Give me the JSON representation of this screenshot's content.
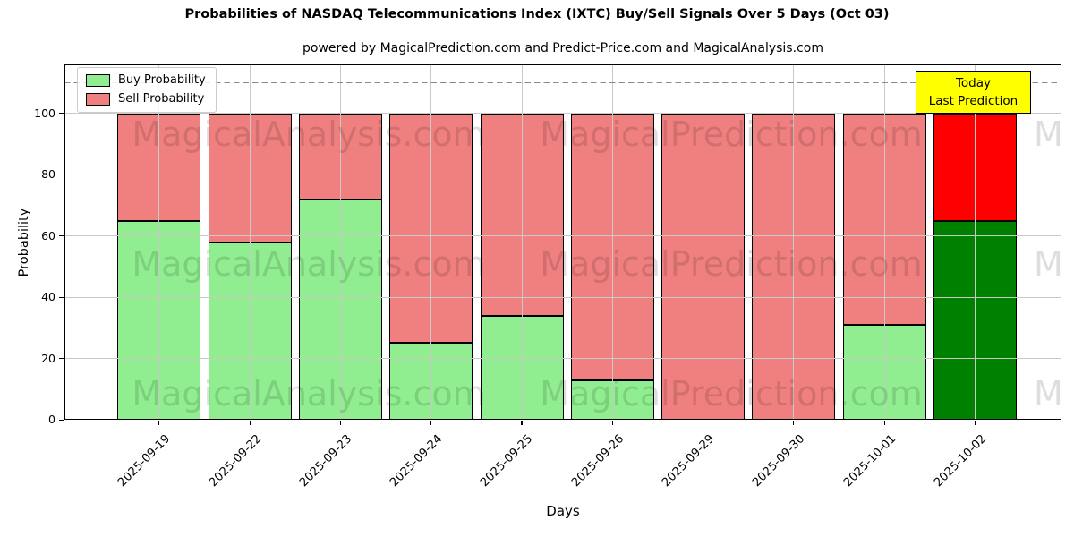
{
  "title": "Probabilities of NASDAQ Telecommunications Index (IXTC) Buy/Sell Signals Over 5 Days (Oct 03)",
  "subtitle": "powered by MagicalPrediction.com and Predict-Price.com and MagicalAnalysis.com",
  "legend": {
    "items": [
      {
        "label": "Buy Probability",
        "color": "#90ee90"
      },
      {
        "label": "Sell Probability",
        "color": "#f08080"
      }
    ]
  },
  "annotation": {
    "line1": "Today",
    "line2": "Last Prediction",
    "bg_color": "#ffff00",
    "border_color": "#000000"
  },
  "watermarks": {
    "texts": [
      "MagicalAnalysis.com",
      "MagicalPrediction.com"
    ],
    "color": "rgba(0,0,0,0.13)"
  },
  "chart_data": {
    "type": "bar",
    "stacked": true,
    "title": "Probabilities of NASDAQ Telecommunications Index (IXTC) Buy/Sell Signals Over 5 Days (Oct 03)",
    "xlabel": "Days",
    "ylabel": "Probability",
    "categories": [
      "2025-09-19",
      "2025-09-22",
      "2025-09-23",
      "2025-09-24",
      "2025-09-25",
      "2025-09-26",
      "2025-09-29",
      "2025-09-30",
      "2025-10-01",
      "2025-10-02"
    ],
    "series": [
      {
        "name": "Buy Probability",
        "color": "#90ee90",
        "values": [
          65,
          58,
          72,
          25,
          34,
          13,
          0,
          0,
          31,
          65
        ]
      },
      {
        "name": "Sell Probability",
        "color": "#f08080",
        "values": [
          35,
          42,
          28,
          75,
          66,
          87,
          100,
          100,
          69,
          35
        ]
      }
    ],
    "today_index": 9,
    "today_colors": {
      "buy": "#008000",
      "sell": "#ff0000"
    },
    "yticks": [
      0,
      20,
      40,
      60,
      80,
      100
    ],
    "ylim": [
      0,
      116
    ],
    "dashed_line_y": 110,
    "grid": true,
    "legend_position": "upper left",
    "annotation_text": "Today\nLast Prediction"
  }
}
